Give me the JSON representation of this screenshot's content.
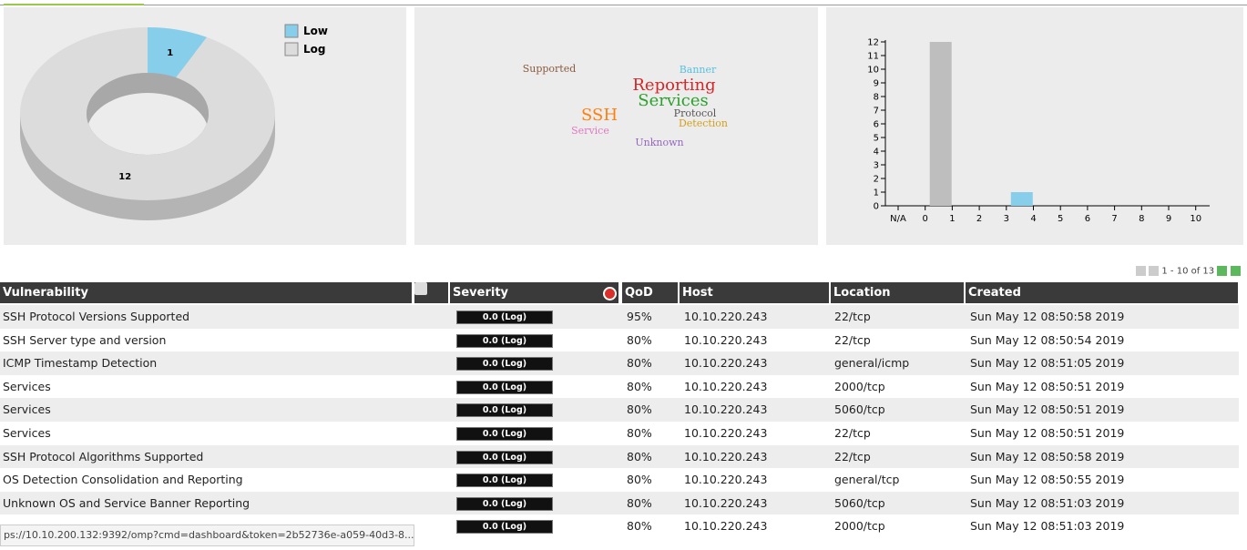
{
  "chart_data": [
    {
      "type": "donut",
      "categories": [
        "Low",
        "Log"
      ],
      "values": [
        1,
        12
      ],
      "colors": [
        "#87ceeb",
        "#dcdcdc"
      ],
      "legend": "top-right"
    },
    {
      "type": "wordcloud",
      "words": [
        "Supported",
        "Banner",
        "Reporting",
        "Services",
        "SSH",
        "Protocol",
        "Detection",
        "Service",
        "Unknown"
      ],
      "values": [
        1,
        1,
        3,
        3,
        3,
        1,
        1,
        1,
        1
      ],
      "colors": [
        "#8b5a3c",
        "#5bc0de",
        "#d62728",
        "#2ca02c",
        "#ff7f0e",
        "#555555",
        "#d4a017",
        "#e377c2",
        "#9467bd"
      ]
    },
    {
      "type": "bar",
      "categories": [
        "N/A",
        "0",
        "1",
        "2",
        "3",
        "4",
        "5",
        "6",
        "7",
        "8",
        "9",
        "10"
      ],
      "values": [
        0,
        12,
        0,
        0,
        1,
        0,
        0,
        0,
        0,
        0,
        0,
        0
      ],
      "colors": [
        "#bebebe",
        "#bebebe",
        "#bebebe",
        "#bebebe",
        "#87ceeb",
        "#bebebe",
        "#bebebe",
        "#bebebe",
        "#bebebe",
        "#bebebe",
        "#bebebe",
        "#bebebe"
      ],
      "ylim": [
        0,
        12
      ],
      "yticks": [
        0,
        1,
        2,
        3,
        4,
        5,
        6,
        7,
        8,
        9,
        10,
        11,
        12
      ]
    }
  ],
  "pagination": "1 - 10 of 13",
  "table": {
    "headers": [
      "Vulnerability",
      "Severity",
      "QoD",
      "Host",
      "Location",
      "Created"
    ],
    "rows": [
      [
        "SSH Protocol Versions Supported",
        "0.0 (Log)",
        "95%",
        "10.10.220.243",
        "22/tcp",
        "Sun May 12 08:50:58 2019"
      ],
      [
        "SSH Server type and version",
        "0.0 (Log)",
        "80%",
        "10.10.220.243",
        "22/tcp",
        "Sun May 12 08:50:54 2019"
      ],
      [
        "ICMP Timestamp Detection",
        "0.0 (Log)",
        "80%",
        "10.10.220.243",
        "general/icmp",
        "Sun May 12 08:51:05 2019"
      ],
      [
        "Services",
        "0.0 (Log)",
        "80%",
        "10.10.220.243",
        "2000/tcp",
        "Sun May 12 08:50:51 2019"
      ],
      [
        "Services",
        "0.0 (Log)",
        "80%",
        "10.10.220.243",
        "5060/tcp",
        "Sun May 12 08:50:51 2019"
      ],
      [
        "Services",
        "0.0 (Log)",
        "80%",
        "10.10.220.243",
        "22/tcp",
        "Sun May 12 08:50:51 2019"
      ],
      [
        "SSH Protocol Algorithms Supported",
        "0.0 (Log)",
        "80%",
        "10.10.220.243",
        "22/tcp",
        "Sun May 12 08:50:58 2019"
      ],
      [
        "OS Detection Consolidation and Reporting",
        "0.0 (Log)",
        "80%",
        "10.10.220.243",
        "general/tcp",
        "Sun May 12 08:50:55 2019"
      ],
      [
        "Unknown OS and Service Banner Reporting",
        "0.0 (Log)",
        "80%",
        "10.10.220.243",
        "5060/tcp",
        "Sun May 12 08:51:03 2019"
      ],
      [
        null,
        "0.0 (Log)",
        "80%",
        "10.10.220.243",
        "2000/tcp",
        "Sun May 12 08:51:03 2019"
      ]
    ]
  },
  "status_bar": "ps://10.10.200.132:9392/omp?cmd=dashboard&token=2b52736e-a059-40d3-8..."
}
